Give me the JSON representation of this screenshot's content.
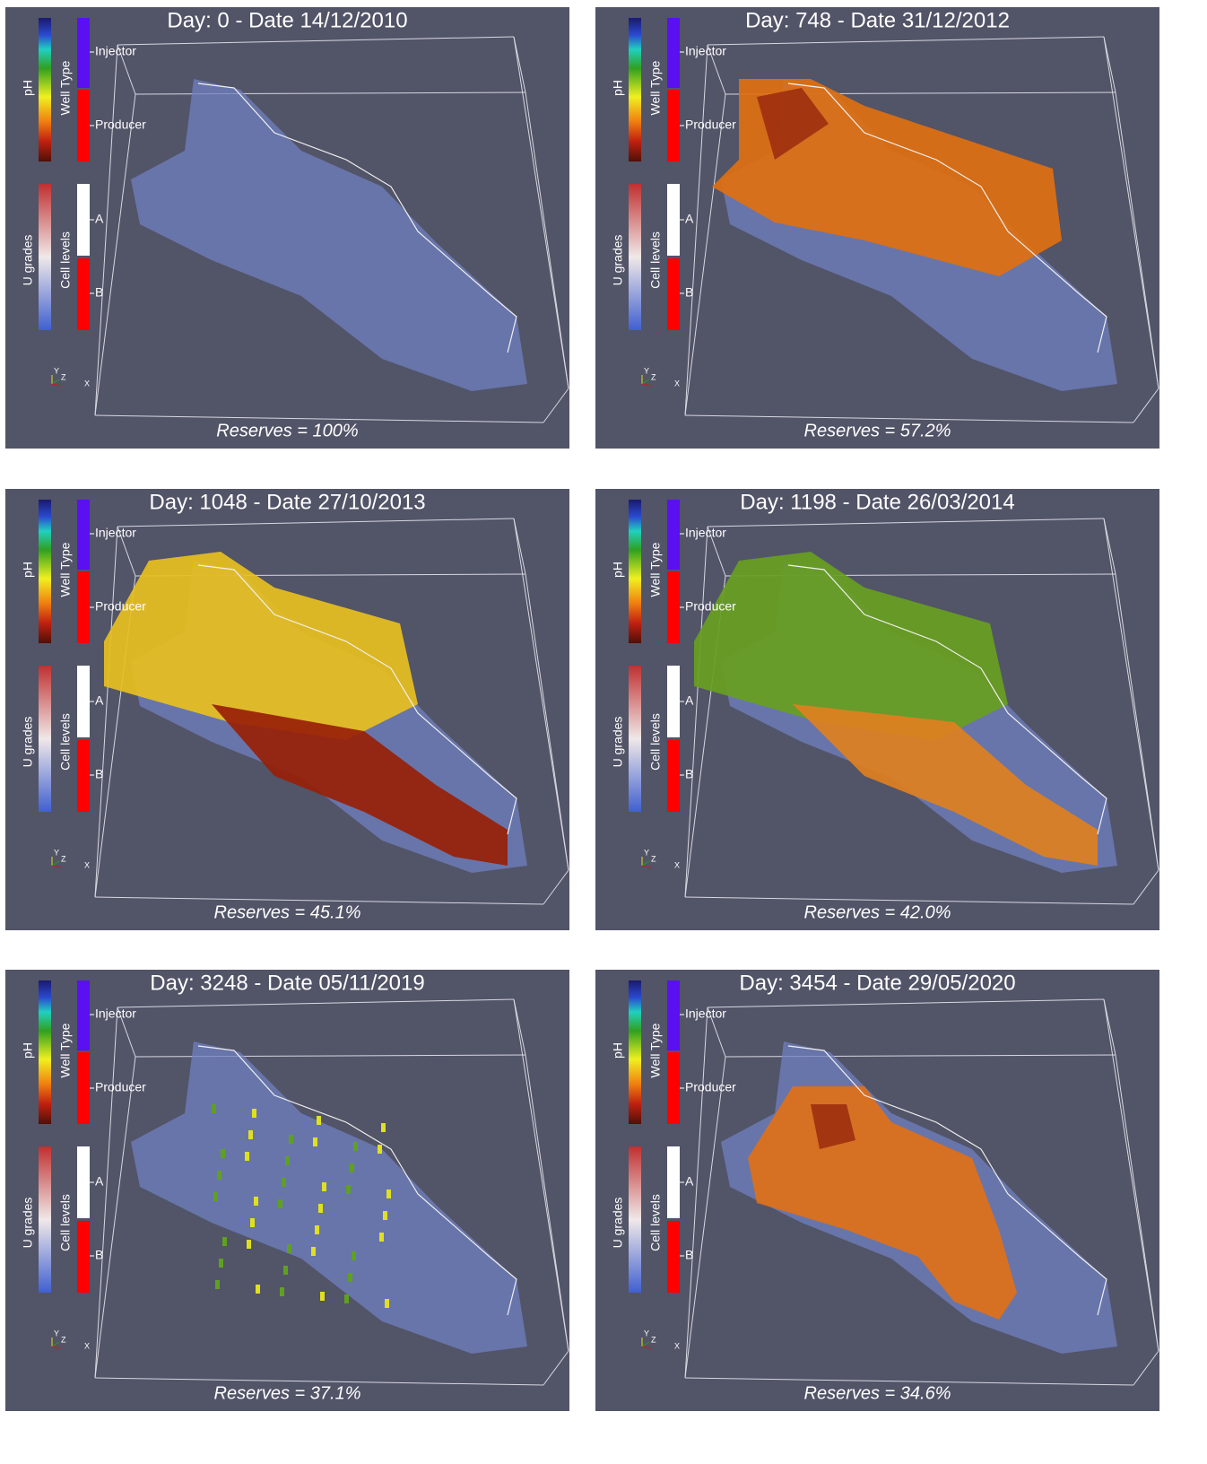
{
  "legend": {
    "ph_label": "pH",
    "well_type_label": "Well Type",
    "injector": "Injector",
    "producer": "Producer",
    "u_grades_label": "U grades",
    "cell_levels_label": "Cell levels",
    "level_a": "A",
    "level_b": "B"
  },
  "axes": [
    "Y",
    "Z",
    "X"
  ],
  "panels": [
    {
      "title": "Day: 0 - Date 14/12/2010",
      "footer": "Reserves = 100%"
    },
    {
      "title": "Day: 748 - Date 31/12/2012",
      "footer": "Reserves = 57.2%"
    },
    {
      "title": "Day: 1048 - Date 27/10/2013",
      "footer": "Reserves = 45.1%"
    },
    {
      "title": "Day: 1198 - Date 26/03/2014",
      "footer": "Reserves = 42.0%"
    },
    {
      "title": "Day: 3248 - Date 05/11/2019",
      "footer": "Reserves = 37.1%"
    },
    {
      "title": "Day: 3454 - Date 29/05/2020",
      "footer": "Reserves = 34.6%"
    }
  ]
}
